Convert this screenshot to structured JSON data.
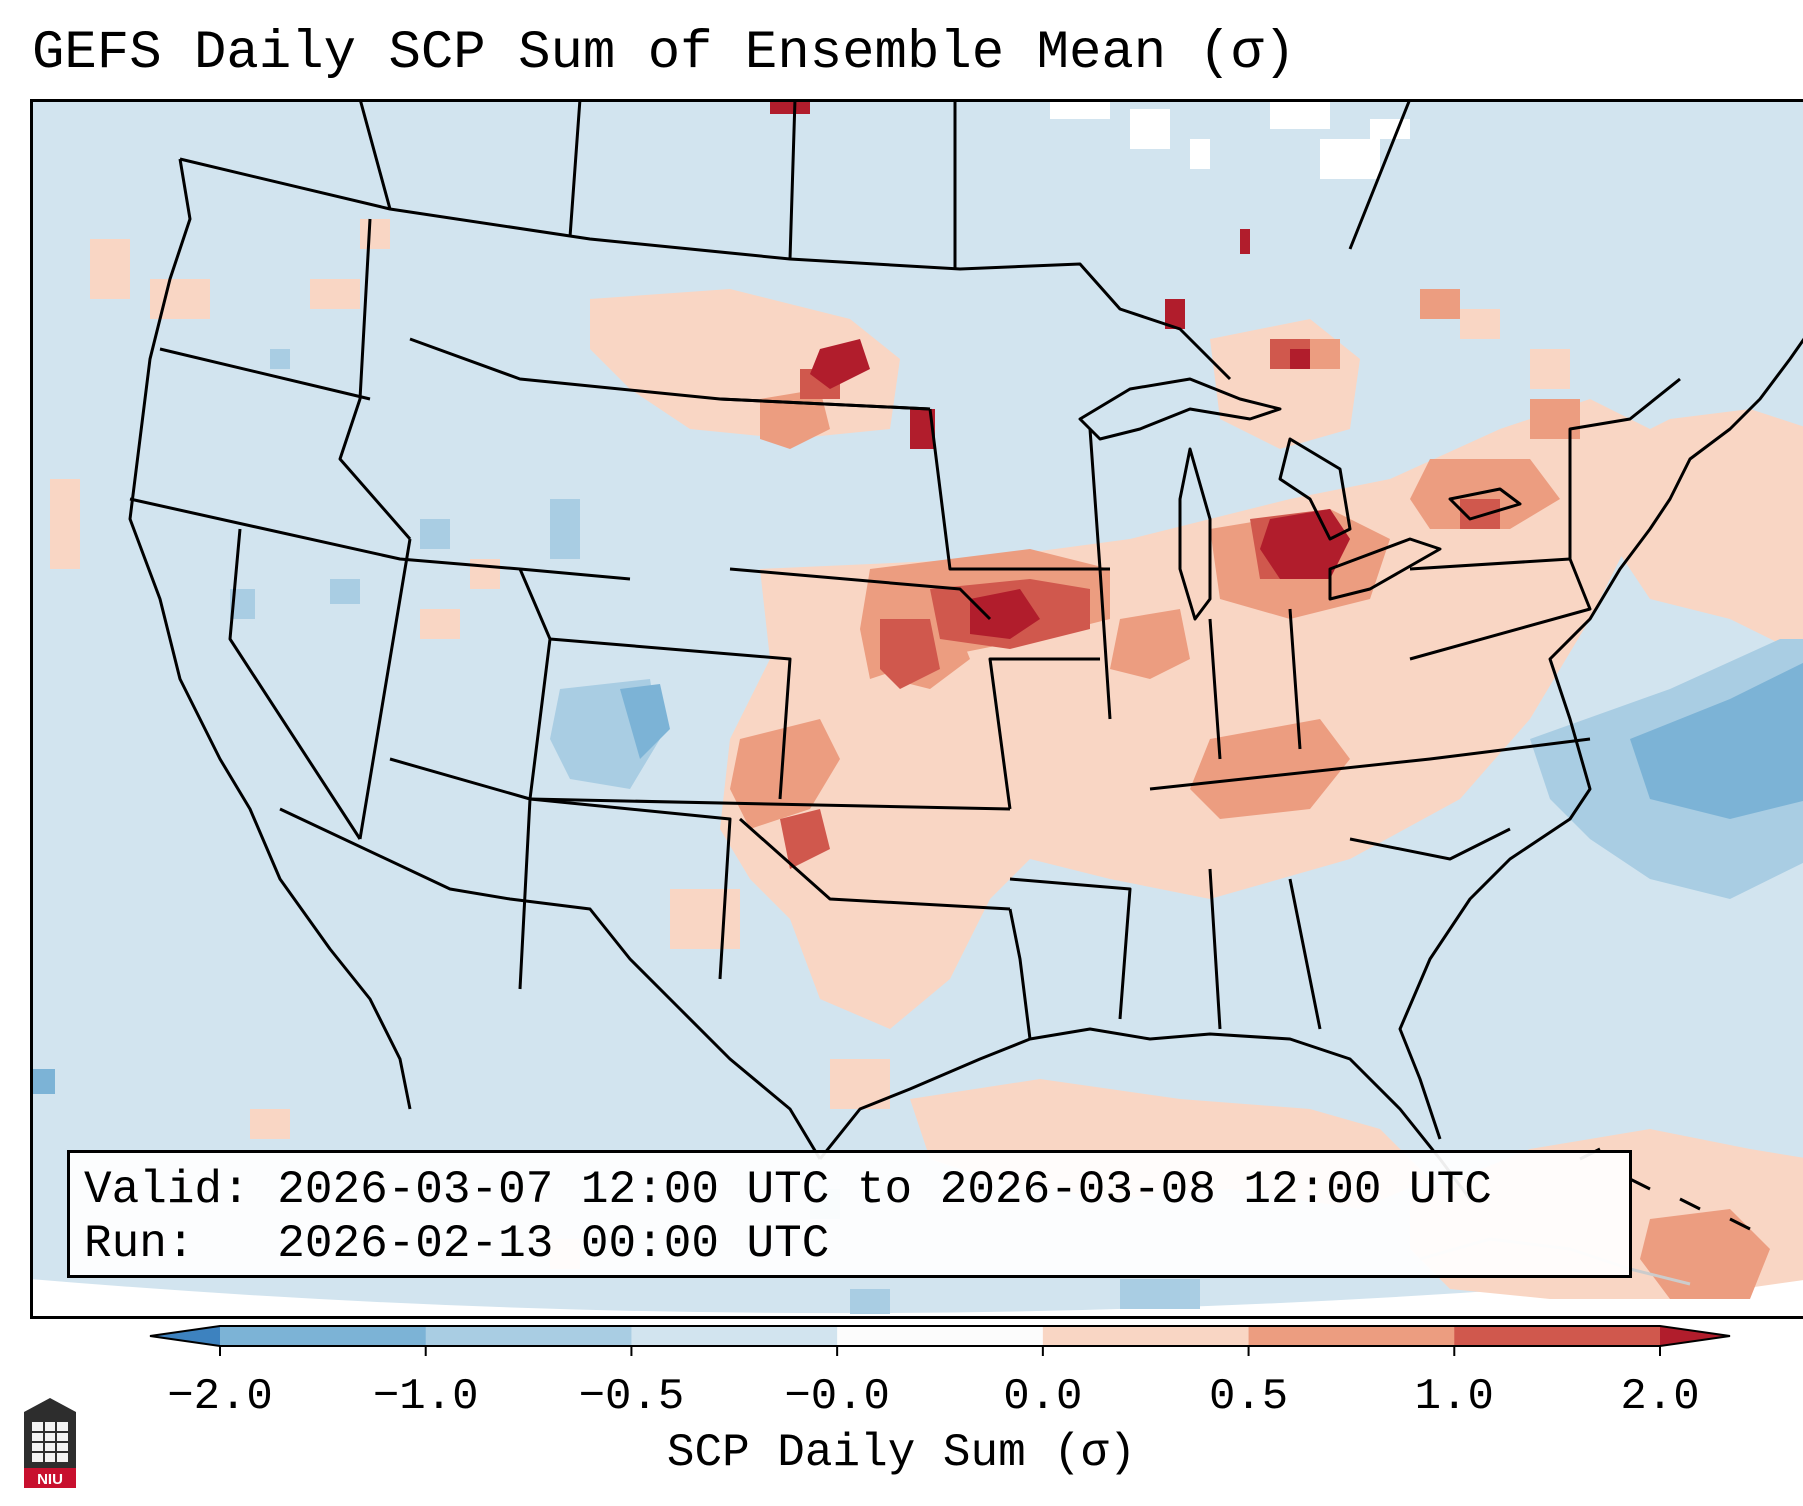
{
  "title": "GEFS Daily SCP Sum of Ensemble Mean (σ)",
  "valid_label": "Valid:",
  "valid_value": "2026-03-07 12:00 UTC to 2026-03-08 12:00 UTC",
  "run_label": "Run:",
  "run_value": "2026-02-13 00:00 UTC",
  "colorbar": {
    "label": "SCP Daily Sum (σ)",
    "ticks": [
      "−2.0",
      "−1.0",
      "−0.5",
      "−0.0",
      "0.0",
      "0.5",
      "1.0",
      "2.0"
    ],
    "bins": [
      {
        "color": "#3d82bf"
      },
      {
        "color": "#7cb3d6"
      },
      {
        "color": "#a9cde3"
      },
      {
        "color": "#d2e4ef"
      },
      {
        "color": "#fcfcfc"
      },
      {
        "color": "#f9d6c4"
      },
      {
        "color": "#ec9d80"
      },
      {
        "color": "#d0584d"
      },
      {
        "color": "#b11d2c"
      }
    ]
  },
  "legend_colors": {
    "background_neutral": "#d2e4ef",
    "positive_low": "#f9d6c4",
    "positive_mid": "#ec9d80",
    "positive_high": "#d0584d",
    "positive_extreme": "#b11d2c",
    "negative_low": "#a9cde3",
    "negative_mid": "#7cb3d6"
  },
  "logo": {
    "text": "NIU"
  }
}
